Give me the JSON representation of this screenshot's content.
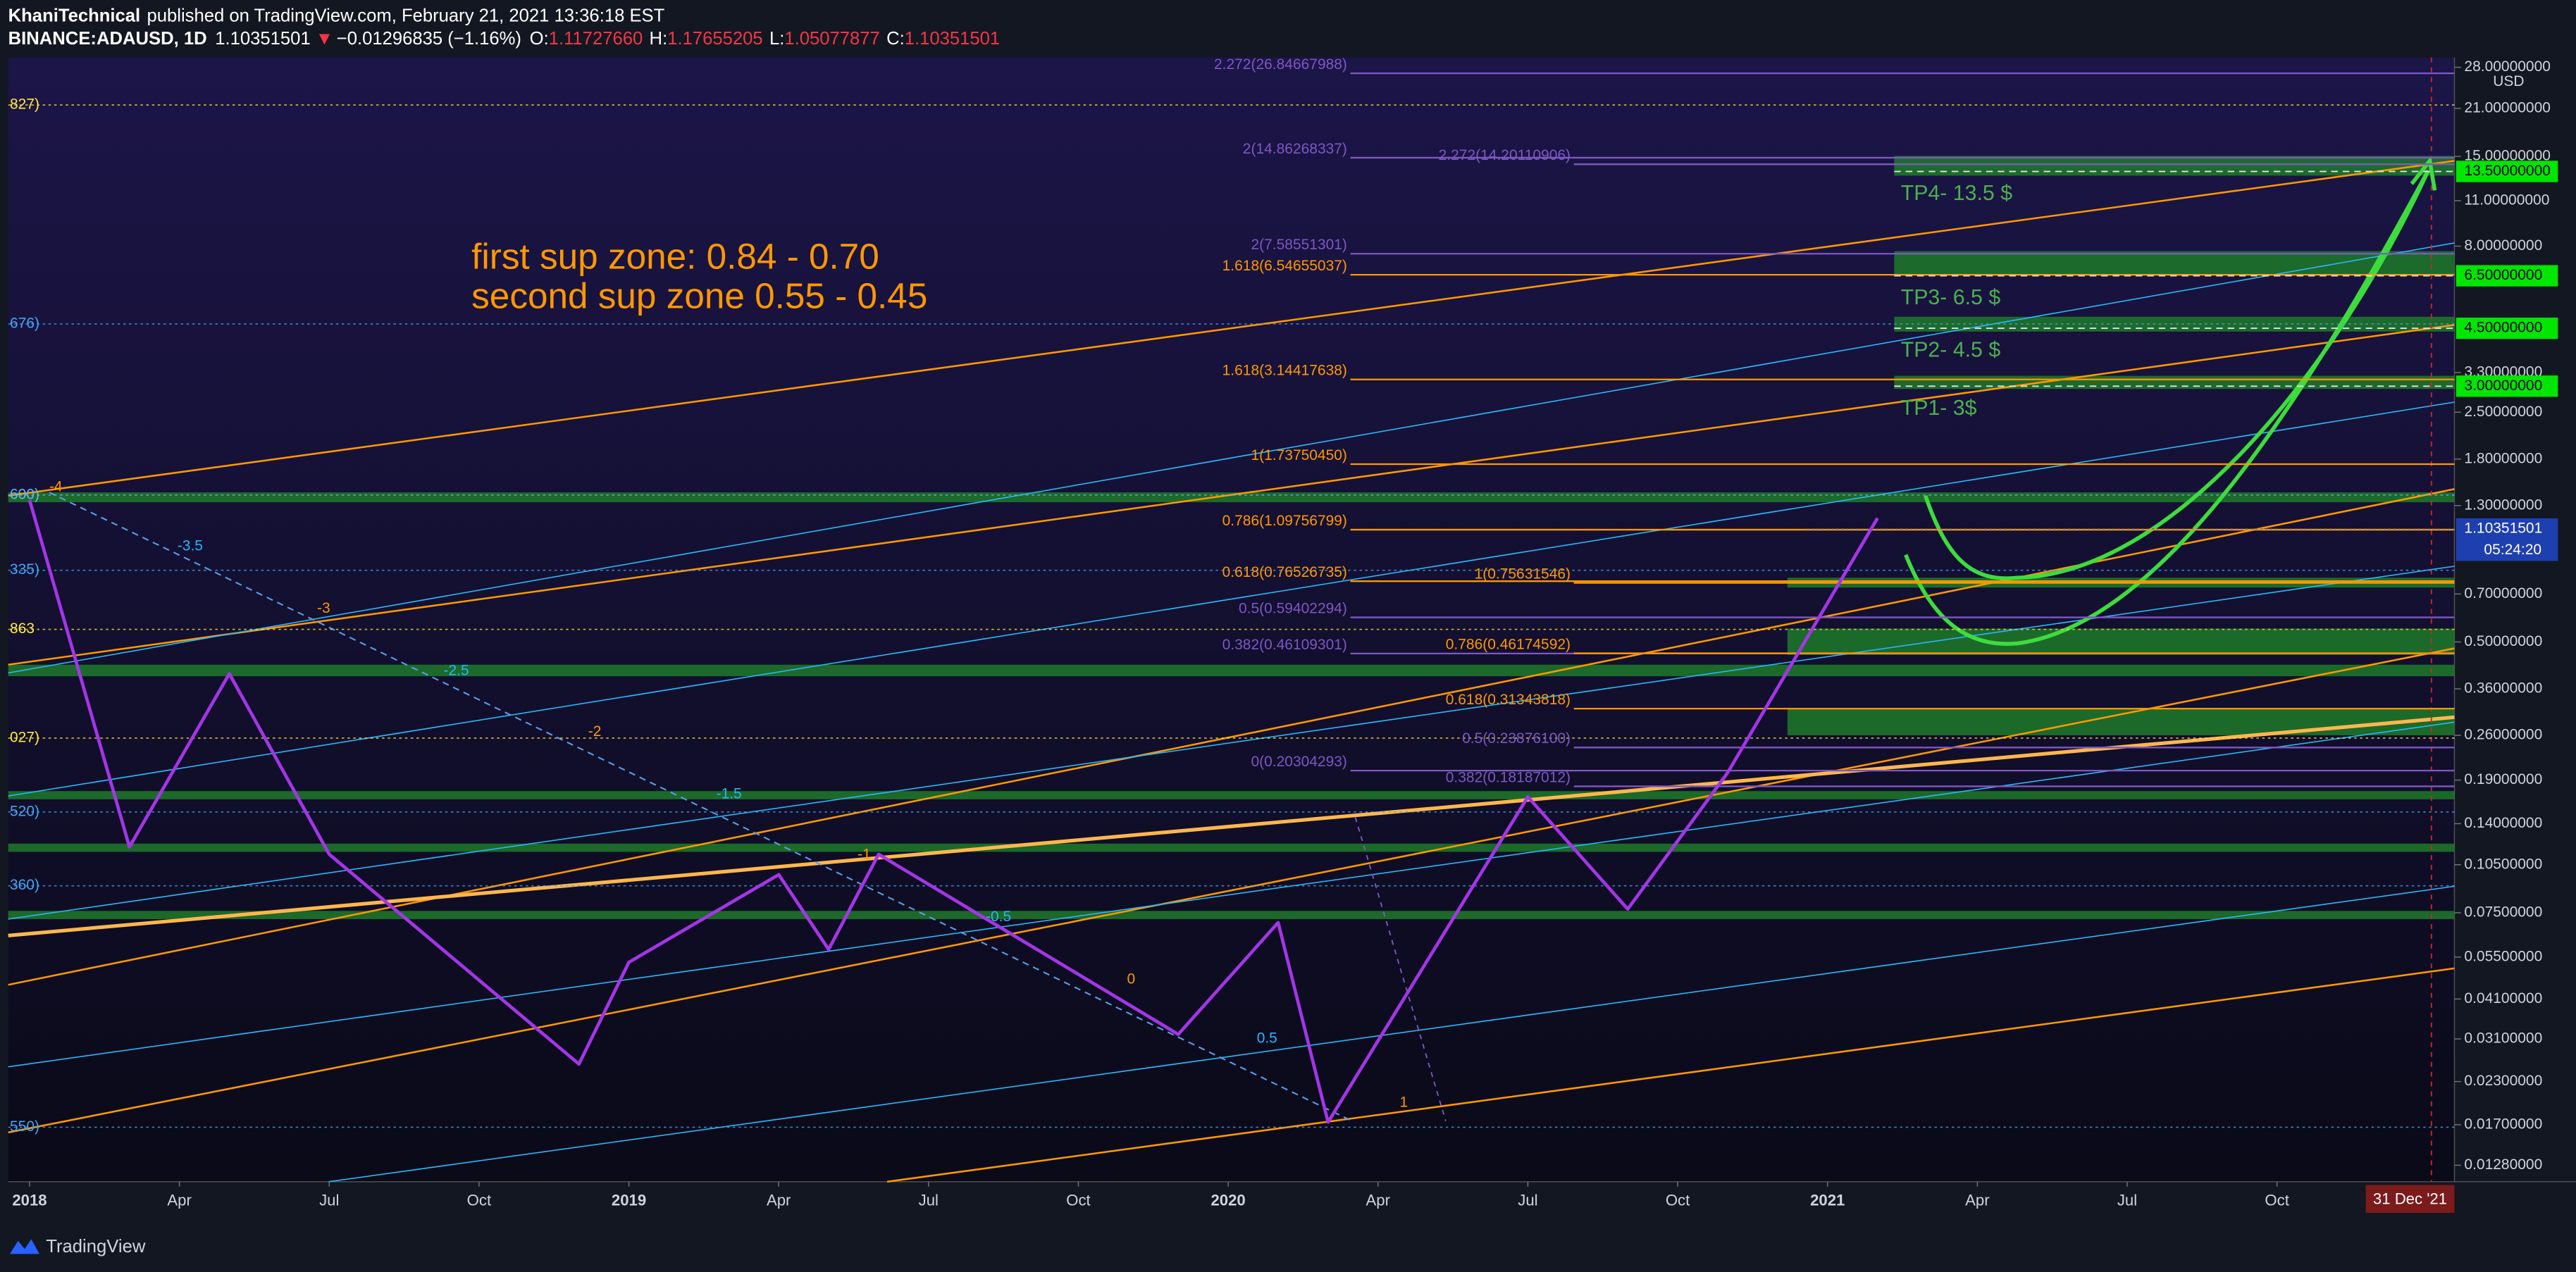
{
  "header": {
    "author": "KhaniTechnical",
    "published": "published on TradingView.com, February 21, 2021 13:36:18 EST",
    "symbol": "BINANCE:ADAUSD, 1D",
    "last": "1.10351501",
    "arrow": "▼",
    "change": "−0.01296835 (−1.16%)",
    "o_label": "O:",
    "open": "1.11727660",
    "h_label": "H:",
    "high": "1.17655205",
    "l_label": "L:",
    "low": "1.05077877",
    "c_label": "C:",
    "close": "1.10351501"
  },
  "chart_data": {
    "type": "line",
    "log_scale": true,
    "currency": "USD",
    "annotations": [
      "first sup zone: 0.84 - 0.70",
      "second sup zone 0.55 - 0.45"
    ],
    "series": [
      {
        "color": "#a335e8",
        "x": [
          "2018-01",
          "2018-03",
          "2018-05",
          "2018-07",
          "2018-12",
          "2019-01",
          "2019-04",
          "2019-05",
          "2019-06",
          "2019-12",
          "2020-02",
          "2020-03",
          "2020-07",
          "2020-09",
          "2020-11",
          "2021-02"
        ],
        "values": [
          1.35,
          0.119,
          0.4,
          0.113,
          0.026,
          0.053,
          0.098,
          0.058,
          0.113,
          0.032,
          0.07,
          0.0173,
          0.169,
          0.077,
          0.2,
          1.19
        ]
      }
    ],
    "ylim": [
      0.0114,
      30
    ],
    "yticks": [
      {
        "value": 28,
        "label": "28.00000000"
      },
      {
        "value": 21,
        "label": "21.00000000"
      },
      {
        "value": 15,
        "label": "15.00000000"
      },
      {
        "value": 11,
        "label": "11.00000000"
      },
      {
        "value": 8,
        "label": "8.00000000"
      },
      {
        "value": 3.3,
        "label": "3.30000000"
      },
      {
        "value": 2.5,
        "label": "2.50000000"
      },
      {
        "value": 1.8,
        "label": "1.80000000"
      },
      {
        "value": 1.3,
        "label": "1.30000000"
      },
      {
        "value": 0.7,
        "label": "0.70000000"
      },
      {
        "value": 0.5,
        "label": "0.50000000"
      },
      {
        "value": 0.36,
        "label": "0.36000000"
      },
      {
        "value": 0.26,
        "label": "0.26000000"
      },
      {
        "value": 0.19,
        "label": "0.19000000"
      },
      {
        "value": 0.14,
        "label": "0.14000000"
      },
      {
        "value": 0.105,
        "label": "0.10500000"
      },
      {
        "value": 0.075,
        "label": "0.07500000"
      },
      {
        "value": 0.055,
        "label": "0.05500000"
      },
      {
        "value": 0.041,
        "label": "0.04100000"
      },
      {
        "value": 0.031,
        "label": "0.03100000"
      },
      {
        "value": 0.023,
        "label": "0.02300000"
      },
      {
        "value": 0.017,
        "label": "0.01700000"
      },
      {
        "value": 0.0128,
        "label": "0.01280000"
      }
    ],
    "last_price": {
      "value": 1.10351501,
      "label": "1.10351501"
    },
    "countdown": "05:24:20",
    "targets": [
      {
        "value": 13.5,
        "label": "13.50000000",
        "text": "TP4- 13.5 $"
      },
      {
        "value": 6.5,
        "label": "6.50000000",
        "text": "TP3- 6.5 $"
      },
      {
        "value": 4.5,
        "label": "4.50000000",
        "text": "TP2- 4.5 $"
      },
      {
        "value": 3,
        "label": "3.00000000",
        "text": "TP1- 3$"
      }
    ],
    "xtick_labels": [
      "2018",
      "Apr",
      "Jul",
      "Oct",
      "2019",
      "Apr",
      "Jul",
      "Oct",
      "2020",
      "Apr",
      "Jul",
      "Oct",
      "2021",
      "Apr",
      "Jul",
      "Oct"
    ],
    "x_end_label": "31 Dec '21",
    "fib_a": [
      {
        "label": "2.272(26.84667988)",
        "value": 26.84667988,
        "color": "#7e57c2"
      },
      {
        "label": "2(14.86268337)",
        "value": 14.86268337,
        "color": "#7e57c2"
      },
      {
        "label": "2(7.58551301)",
        "value": 7.58551301,
        "color": "#7e57c2"
      },
      {
        "label": "1.618(6.54655037)",
        "value": 6.54655037,
        "color": "#ff9800"
      },
      {
        "label": "1.618(3.14417638)",
        "value": 3.14417638,
        "color": "#ff9800"
      },
      {
        "label": "1(1.73750450)",
        "value": 1.7375045,
        "color": "#ff9800"
      },
      {
        "label": "0.786(1.09756799)",
        "value": 1.09756799,
        "color": "#ff9800"
      },
      {
        "label": "0.618(0.76526735)",
        "value": 0.76526735,
        "color": "#ff9800"
      },
      {
        "label": "0.5(0.59402294)",
        "value": 0.59402294,
        "color": "#7e57c2"
      },
      {
        "label": "0.382(0.46109301)",
        "value": 0.46109301,
        "color": "#7e57c2"
      },
      {
        "label": "0(0.20304293)",
        "value": 0.20304293,
        "color": "#7e57c2"
      }
    ],
    "fib_b": [
      {
        "label": "2.272(14.20110906)",
        "value": 14.20110906,
        "color": "#7e57c2"
      },
      {
        "label": "1(0.75631546)",
        "value": 0.75631546,
        "color": "#ff9800"
      },
      {
        "label": "0.786(0.46174592)",
        "value": 0.46174592,
        "color": "#ff9800"
      },
      {
        "label": "0.618(0.31343818)",
        "value": 0.31343818,
        "color": "#ff9800"
      },
      {
        "label": "0.5(0.23876100)",
        "value": 0.238761,
        "color": "#7e57c2"
      },
      {
        "label": "0.382(0.18187012)",
        "value": 0.18187012,
        "color": "#7e57c2"
      }
    ],
    "left_levels": [
      {
        "label": "827)",
        "value": 21.5,
        "color": "#ffeb3b"
      },
      {
        "label": "676)",
        "value": 4.64,
        "color": "#42a5f5"
      },
      {
        "label": "600)",
        "value": 1.4,
        "color": "#64b5f6"
      },
      {
        "label": "335)",
        "value": 0.826,
        "color": "#42a5f5"
      },
      {
        "label": "863",
        "value": 0.546,
        "color": "#ffeb3b"
      },
      {
        "label": "027)",
        "value": 0.255,
        "color": "#ffeb3b"
      },
      {
        "label": "520)",
        "value": 0.152,
        "color": "#42a5f5"
      },
      {
        "label": "360)",
        "value": 0.0906,
        "color": "#42a5f5"
      },
      {
        "label": "550)",
        "value": 0.0167,
        "color": "#42a5f5"
      }
    ],
    "channel_labels": [
      "-4",
      "-3.5",
      "-3",
      "-2.5",
      "-2",
      "-1.5",
      "-1",
      "-0.5",
      "0",
      "0.5",
      "1"
    ]
  },
  "footer": {
    "brand": "TradingView"
  }
}
